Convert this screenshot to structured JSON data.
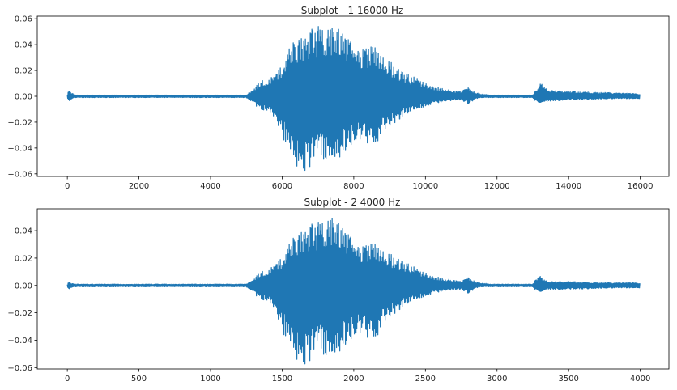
{
  "chart_data": [
    {
      "type": "line",
      "title": "Subplot - 1 16000 Hz",
      "xlabel": "",
      "ylabel": "",
      "xlim": [
        -840,
        16800
      ],
      "ylim": [
        -0.062,
        0.062
      ],
      "xticks": [
        0,
        2000,
        4000,
        6000,
        8000,
        10000,
        12000,
        14000,
        16000
      ],
      "yticks": [
        -0.06,
        -0.04,
        -0.02,
        0.0,
        0.02,
        0.04,
        0.06
      ],
      "ytick_labels": [
        "−0.06",
        "−0.04",
        "−0.02",
        "0.00",
        "0.02",
        "0.04",
        "0.06"
      ],
      "grid": false,
      "legend": "none",
      "series_color": "#1f77b4",
      "envelope": {
        "x": [
          0,
          40,
          80,
          200,
          1000,
          3000,
          5000,
          5200,
          5400,
          5600,
          5800,
          6000,
          6200,
          6400,
          6600,
          6800,
          7000,
          7200,
          7400,
          7600,
          7800,
          8000,
          8200,
          8400,
          8600,
          8800,
          9000,
          9200,
          9400,
          9600,
          9800,
          10000,
          10200,
          10400,
          10600,
          10800,
          11000,
          11200,
          11400,
          11600,
          11800,
          12000,
          12500,
          13000,
          13150,
          13250,
          13400,
          14000,
          15000,
          16000
        ],
        "top": [
          0.001,
          0.006,
          0.004,
          0.001,
          0.001,
          0.001,
          0.001,
          0.006,
          0.012,
          0.014,
          0.016,
          0.026,
          0.038,
          0.045,
          0.048,
          0.052,
          0.054,
          0.055,
          0.056,
          0.053,
          0.047,
          0.04,
          0.037,
          0.038,
          0.039,
          0.035,
          0.028,
          0.022,
          0.018,
          0.016,
          0.014,
          0.01,
          0.008,
          0.007,
          0.006,
          0.004,
          0.004,
          0.007,
          0.003,
          0.002,
          0.001,
          0.001,
          0.001,
          0.001,
          0.008,
          0.011,
          0.005,
          0.004,
          0.003,
          0.002
        ],
        "bottom": [
          -0.001,
          -0.004,
          -0.003,
          -0.001,
          -0.001,
          -0.001,
          -0.001,
          -0.006,
          -0.01,
          -0.012,
          -0.017,
          -0.03,
          -0.045,
          -0.054,
          -0.058,
          -0.055,
          -0.05,
          -0.049,
          -0.052,
          -0.048,
          -0.043,
          -0.035,
          -0.033,
          -0.038,
          -0.04,
          -0.03,
          -0.024,
          -0.02,
          -0.016,
          -0.012,
          -0.01,
          -0.008,
          -0.006,
          -0.005,
          -0.004,
          -0.003,
          -0.003,
          -0.006,
          -0.002,
          -0.001,
          -0.001,
          -0.001,
          -0.001,
          -0.001,
          -0.007,
          -0.005,
          -0.004,
          -0.003,
          -0.002,
          -0.002
        ]
      }
    },
    {
      "type": "line",
      "title": "Subplot - 2 4000 Hz",
      "xlabel": "",
      "ylabel": "",
      "xlim": [
        -210,
        4200
      ],
      "ylim": [
        -0.061,
        0.056
      ],
      "xticks": [
        0,
        500,
        1000,
        1500,
        2000,
        2500,
        3000,
        3500,
        4000
      ],
      "yticks": [
        -0.06,
        -0.04,
        -0.02,
        0.0,
        0.02,
        0.04
      ],
      "ytick_labels": [
        "−0.06",
        "−0.04",
        "−0.02",
        "0.00",
        "0.02",
        "0.04"
      ],
      "grid": false,
      "legend": "none",
      "series_color": "#1f77b4",
      "envelope": {
        "x": [
          0,
          10,
          20,
          50,
          250,
          750,
          1250,
          1300,
          1350,
          1400,
          1450,
          1500,
          1550,
          1600,
          1650,
          1700,
          1750,
          1800,
          1850,
          1900,
          1950,
          2000,
          2050,
          2100,
          2150,
          2200,
          2250,
          2300,
          2350,
          2400,
          2450,
          2500,
          2550,
          2600,
          2650,
          2700,
          2750,
          2800,
          2850,
          2900,
          2950,
          3000,
          3125,
          3250,
          3288,
          3312,
          3350,
          3500,
          3750,
          4000
        ],
        "top": [
          0.001,
          0.003,
          0.002,
          0.001,
          0.001,
          0.001,
          0.001,
          0.005,
          0.01,
          0.012,
          0.015,
          0.022,
          0.031,
          0.038,
          0.042,
          0.045,
          0.046,
          0.05,
          0.052,
          0.046,
          0.04,
          0.033,
          0.029,
          0.03,
          0.031,
          0.029,
          0.024,
          0.02,
          0.017,
          0.015,
          0.012,
          0.009,
          0.007,
          0.006,
          0.005,
          0.004,
          0.003,
          0.006,
          0.003,
          0.002,
          0.001,
          0.001,
          0.001,
          0.001,
          0.008,
          0.006,
          0.003,
          0.003,
          0.002,
          0.002
        ],
        "bottom": [
          -0.001,
          -0.003,
          -0.002,
          -0.001,
          -0.001,
          -0.001,
          -0.001,
          -0.006,
          -0.01,
          -0.012,
          -0.018,
          -0.033,
          -0.045,
          -0.054,
          -0.058,
          -0.055,
          -0.05,
          -0.051,
          -0.055,
          -0.049,
          -0.044,
          -0.037,
          -0.034,
          -0.04,
          -0.042,
          -0.031,
          -0.024,
          -0.02,
          -0.016,
          -0.012,
          -0.01,
          -0.008,
          -0.006,
          -0.005,
          -0.004,
          -0.003,
          -0.003,
          -0.006,
          -0.002,
          -0.001,
          -0.001,
          -0.001,
          -0.001,
          -0.001,
          -0.006,
          -0.005,
          -0.003,
          -0.003,
          -0.002,
          -0.002
        ]
      }
    }
  ]
}
